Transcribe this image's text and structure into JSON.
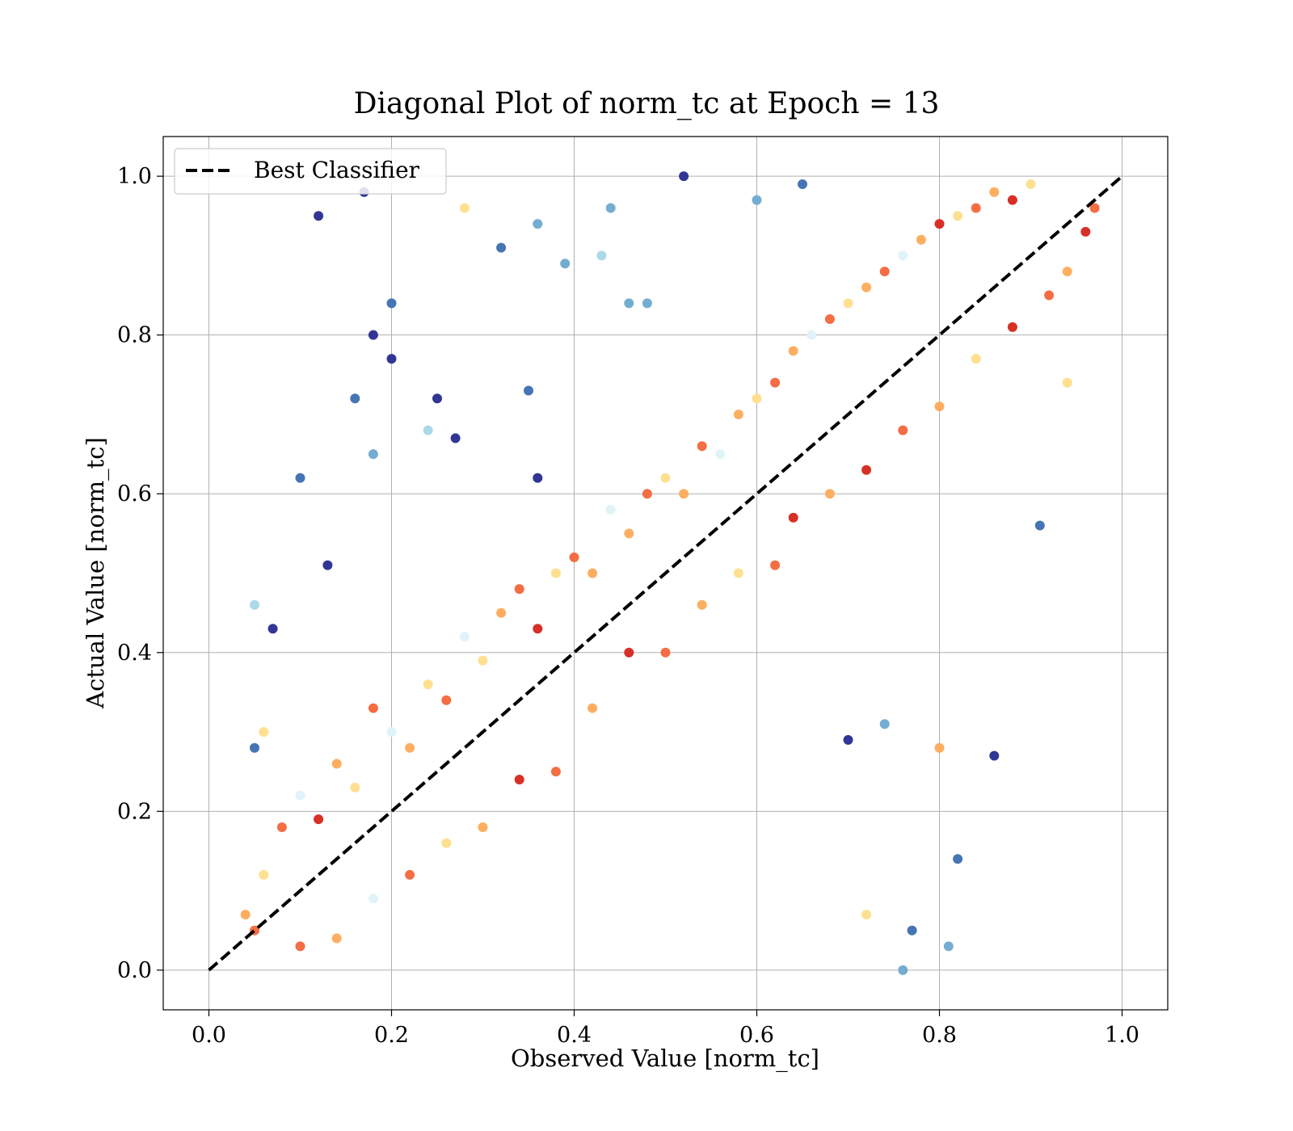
{
  "chart_data": {
    "type": "scatter",
    "title": "Diagonal Plot of norm_tc at Epoch = 13",
    "xlabel": "Observed Value [norm_tc]",
    "ylabel": "Actual Value [norm_tc]",
    "xlim": [
      -0.05,
      1.05
    ],
    "ylim": [
      -0.05,
      1.05
    ],
    "xticks": [
      "0.0",
      "0.2",
      "0.4",
      "0.6",
      "0.8",
      "1.0"
    ],
    "yticks": [
      "0.0",
      "0.2",
      "0.4",
      "0.6",
      "0.8",
      "1.0"
    ],
    "grid": true,
    "legend": {
      "placement": "upper-left",
      "entries": [
        {
          "label": "Best Classifier",
          "style": "dashed",
          "color": "#000000"
        }
      ]
    },
    "reference_line": {
      "name": "Best Classifier",
      "x": [
        0,
        1
      ],
      "y": [
        0,
        1
      ]
    },
    "colormap": [
      "#a50026",
      "#d73027",
      "#f46d43",
      "#fdae61",
      "#fee090",
      "#e0f3f8",
      "#abd9e9",
      "#74add1",
      "#4575b4",
      "#313695"
    ],
    "points": [
      [
        0.12,
        0.95,
        9
      ],
      [
        0.17,
        0.98,
        9
      ],
      [
        0.28,
        0.96,
        4
      ],
      [
        0.07,
        0.43,
        9
      ],
      [
        0.05,
        0.46,
        6
      ],
      [
        0.18,
        0.8,
        9
      ],
      [
        0.2,
        0.84,
        8
      ],
      [
        0.2,
        0.77,
        9
      ],
      [
        0.25,
        0.72,
        9
      ],
      [
        0.13,
        0.51,
        9
      ],
      [
        0.1,
        0.62,
        8
      ],
      [
        0.16,
        0.72,
        8
      ],
      [
        0.18,
        0.65,
        7
      ],
      [
        0.32,
        0.91,
        8
      ],
      [
        0.36,
        0.94,
        7
      ],
      [
        0.44,
        0.96,
        7
      ],
      [
        0.52,
        1.0,
        9
      ],
      [
        0.6,
        0.97,
        7
      ],
      [
        0.65,
        0.99,
        8
      ],
      [
        0.86,
        0.27,
        9
      ],
      [
        0.82,
        0.14,
        8
      ],
      [
        0.81,
        0.03,
        7
      ],
      [
        0.76,
        0.0,
        7
      ],
      [
        0.72,
        0.07,
        4
      ],
      [
        0.77,
        0.05,
        8
      ],
      [
        0.91,
        0.56,
        8
      ],
      [
        0.94,
        0.74,
        4
      ],
      [
        0.8,
        0.28,
        3
      ],
      [
        0.7,
        0.29,
        9
      ],
      [
        0.74,
        0.31,
        7
      ],
      [
        0.27,
        0.67,
        9
      ],
      [
        0.24,
        0.68,
        6
      ],
      [
        0.06,
        0.3,
        4
      ],
      [
        0.05,
        0.28,
        8
      ],
      [
        0.39,
        0.89,
        7
      ],
      [
        0.43,
        0.9,
        6
      ],
      [
        0.46,
        0.84,
        7
      ],
      [
        0.48,
        0.84,
        7
      ],
      [
        0.35,
        0.73,
        8
      ],
      [
        0.36,
        0.62,
        9
      ],
      [
        0.05,
        0.05,
        2
      ],
      [
        0.04,
        0.07,
        3
      ],
      [
        0.06,
        0.12,
        4
      ],
      [
        0.08,
        0.18,
        2
      ],
      [
        0.1,
        0.22,
        5
      ],
      [
        0.12,
        0.19,
        1
      ],
      [
        0.14,
        0.26,
        3
      ],
      [
        0.16,
        0.23,
        4
      ],
      [
        0.18,
        0.33,
        2
      ],
      [
        0.2,
        0.3,
        5
      ],
      [
        0.22,
        0.28,
        3
      ],
      [
        0.24,
        0.36,
        4
      ],
      [
        0.26,
        0.34,
        2
      ],
      [
        0.28,
        0.42,
        5
      ],
      [
        0.3,
        0.39,
        4
      ],
      [
        0.32,
        0.45,
        3
      ],
      [
        0.34,
        0.48,
        2
      ],
      [
        0.36,
        0.43,
        1
      ],
      [
        0.38,
        0.5,
        4
      ],
      [
        0.4,
        0.52,
        2
      ],
      [
        0.42,
        0.5,
        3
      ],
      [
        0.44,
        0.58,
        5
      ],
      [
        0.46,
        0.55,
        3
      ],
      [
        0.48,
        0.6,
        2
      ],
      [
        0.5,
        0.62,
        4
      ],
      [
        0.52,
        0.6,
        3
      ],
      [
        0.54,
        0.66,
        2
      ],
      [
        0.56,
        0.65,
        5
      ],
      [
        0.58,
        0.7,
        3
      ],
      [
        0.6,
        0.72,
        4
      ],
      [
        0.62,
        0.74,
        2
      ],
      [
        0.64,
        0.78,
        3
      ],
      [
        0.66,
        0.8,
        5
      ],
      [
        0.68,
        0.82,
        2
      ],
      [
        0.7,
        0.84,
        4
      ],
      [
        0.72,
        0.86,
        3
      ],
      [
        0.74,
        0.88,
        2
      ],
      [
        0.76,
        0.9,
        5
      ],
      [
        0.78,
        0.92,
        3
      ],
      [
        0.8,
        0.94,
        1
      ],
      [
        0.82,
        0.95,
        4
      ],
      [
        0.84,
        0.96,
        2
      ],
      [
        0.86,
        0.98,
        3
      ],
      [
        0.88,
        0.97,
        1
      ],
      [
        0.9,
        0.99,
        4
      ],
      [
        0.1,
        0.03,
        2
      ],
      [
        0.14,
        0.04,
        3
      ],
      [
        0.18,
        0.09,
        5
      ],
      [
        0.22,
        0.12,
        2
      ],
      [
        0.26,
        0.16,
        4
      ],
      [
        0.3,
        0.18,
        3
      ],
      [
        0.34,
        0.24,
        1
      ],
      [
        0.38,
        0.25,
        2
      ],
      [
        0.42,
        0.33,
        3
      ],
      [
        0.46,
        0.4,
        1
      ],
      [
        0.5,
        0.4,
        2
      ],
      [
        0.54,
        0.46,
        3
      ],
      [
        0.58,
        0.5,
        4
      ],
      [
        0.62,
        0.51,
        2
      ],
      [
        0.64,
        0.57,
        1
      ],
      [
        0.68,
        0.6,
        3
      ],
      [
        0.72,
        0.63,
        1
      ],
      [
        0.76,
        0.68,
        2
      ],
      [
        0.8,
        0.71,
        3
      ],
      [
        0.84,
        0.77,
        4
      ],
      [
        0.88,
        0.81,
        1
      ],
      [
        0.92,
        0.85,
        2
      ],
      [
        0.94,
        0.88,
        3
      ],
      [
        0.96,
        0.93,
        1
      ],
      [
        0.97,
        0.96,
        2
      ]
    ]
  }
}
